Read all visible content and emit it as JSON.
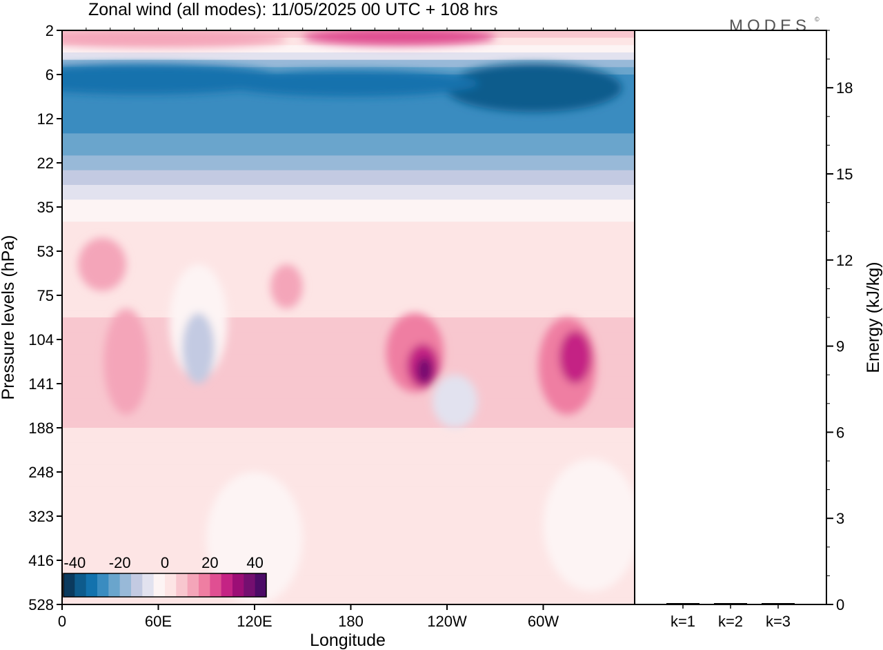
{
  "title": "Zonal wind (all modes):  11/05/2025  00 UTC  + 108 hrs",
  "logo": "MODES",
  "logo_mark": "©",
  "chart_data": [
    {
      "type": "heatmap",
      "title": "Zonal wind (all modes):  11/05/2025  00 UTC  + 108 hrs",
      "xlabel": "Longitude",
      "ylabel": "Pressure levels (hPa)",
      "x_ticks": [
        "0",
        "60E",
        "120E",
        "180",
        "120W",
        "60W"
      ],
      "y_ticks": [
        "2",
        "6",
        "12",
        "22",
        "35",
        "53",
        "75",
        "104",
        "141",
        "188",
        "248",
        "323",
        "416",
        "528"
      ],
      "xlim_lon_east": [
        0,
        357
      ],
      "colorbar": {
        "ticks": [
          "-40",
          "-20",
          "0",
          "20",
          "40"
        ],
        "range": [
          -45,
          45
        ],
        "step": 5,
        "colors": [
          "#0b3a5e",
          "#0e5b8c",
          "#1372ad",
          "#3a8cc0",
          "#6aa5cc",
          "#98b9d8",
          "#c3cae2",
          "#e2e2ef",
          "#fdf4f4",
          "#fde5e5",
          "#f8c7cf",
          "#f4a5b9",
          "#ef7ea2",
          "#e04f92",
          "#c42384",
          "#9c0e76",
          "#740f70",
          "#4c0b66"
        ]
      },
      "field_description_levels": [
        {
          "pressure": "2",
          "u_typical": 12
        },
        {
          "pressure": "6",
          "u_typical": -25
        },
        {
          "pressure": "12",
          "u_typical": -28
        },
        {
          "pressure": "22",
          "u_typical": -18
        },
        {
          "pressure": "35",
          "u_typical": -2
        },
        {
          "pressure": "53",
          "u_typical": 4
        },
        {
          "pressure": "75",
          "u_typical": 4
        },
        {
          "pressure": "104",
          "u_typical": 6
        },
        {
          "pressure": "141",
          "u_typical": 7
        },
        {
          "pressure": "188",
          "u_typical": 5
        },
        {
          "pressure": "248",
          "u_typical": 3
        },
        {
          "pressure": "323",
          "u_typical": 1
        },
        {
          "pressure": "416",
          "u_typical": 1
        },
        {
          "pressure": "528",
          "u_typical": 0
        }
      ]
    },
    {
      "type": "bar",
      "ylabel": "Energy (kJ/kg)",
      "categories": [
        "k=1",
        "k=2",
        "k=3"
      ],
      "values": [
        0.04,
        0.03,
        0.02
      ],
      "ylim": [
        0,
        20
      ],
      "y_ticks": [
        "0",
        "3",
        "6",
        "9",
        "12",
        "15",
        "18"
      ],
      "bar_color": "#000000"
    }
  ]
}
